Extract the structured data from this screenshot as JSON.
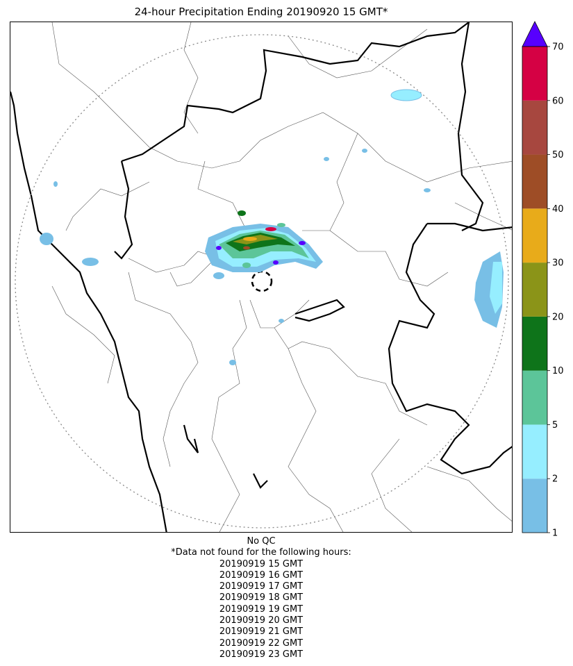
{
  "title": "24-hour Precipitation Ending 20190920 15 GMT*",
  "map": {
    "radar_site_marker": "dashed-circle",
    "range_ring": "dotted-circle"
  },
  "colorbar": {
    "ticks": [
      "1",
      "2",
      "5",
      "10",
      "20",
      "30",
      "40",
      "50",
      "60",
      "70"
    ],
    "bins": [
      {
        "from": 1,
        "to": 2,
        "color": "#78bfe6"
      },
      {
        "from": 2,
        "to": 5,
        "color": "#96eeff"
      },
      {
        "from": 5,
        "to": 10,
        "color": "#5cc599"
      },
      {
        "from": 10,
        "to": 20,
        "color": "#0e741a"
      },
      {
        "from": 20,
        "to": 30,
        "color": "#8b9418"
      },
      {
        "from": 30,
        "to": 40,
        "color": "#e8ab1a"
      },
      {
        "from": 40,
        "to": 50,
        "color": "#9e4d26"
      },
      {
        "from": 50,
        "to": 60,
        "color": "#a7473f"
      },
      {
        "from": 60,
        "to": 70,
        "color": "#d50144"
      }
    ],
    "overflow_color": "#5700fe"
  },
  "footer": {
    "qc": "No QC",
    "missing_note": "*Data not found for the following hours:",
    "missing_hours": [
      "20190919 15 GMT",
      "20190919 16 GMT",
      "20190919 17 GMT",
      "20190919 18 GMT",
      "20190919 19 GMT",
      "20190919 20 GMT",
      "20190919 21 GMT",
      "20190919 22 GMT",
      "20190919 23 GMT"
    ]
  }
}
